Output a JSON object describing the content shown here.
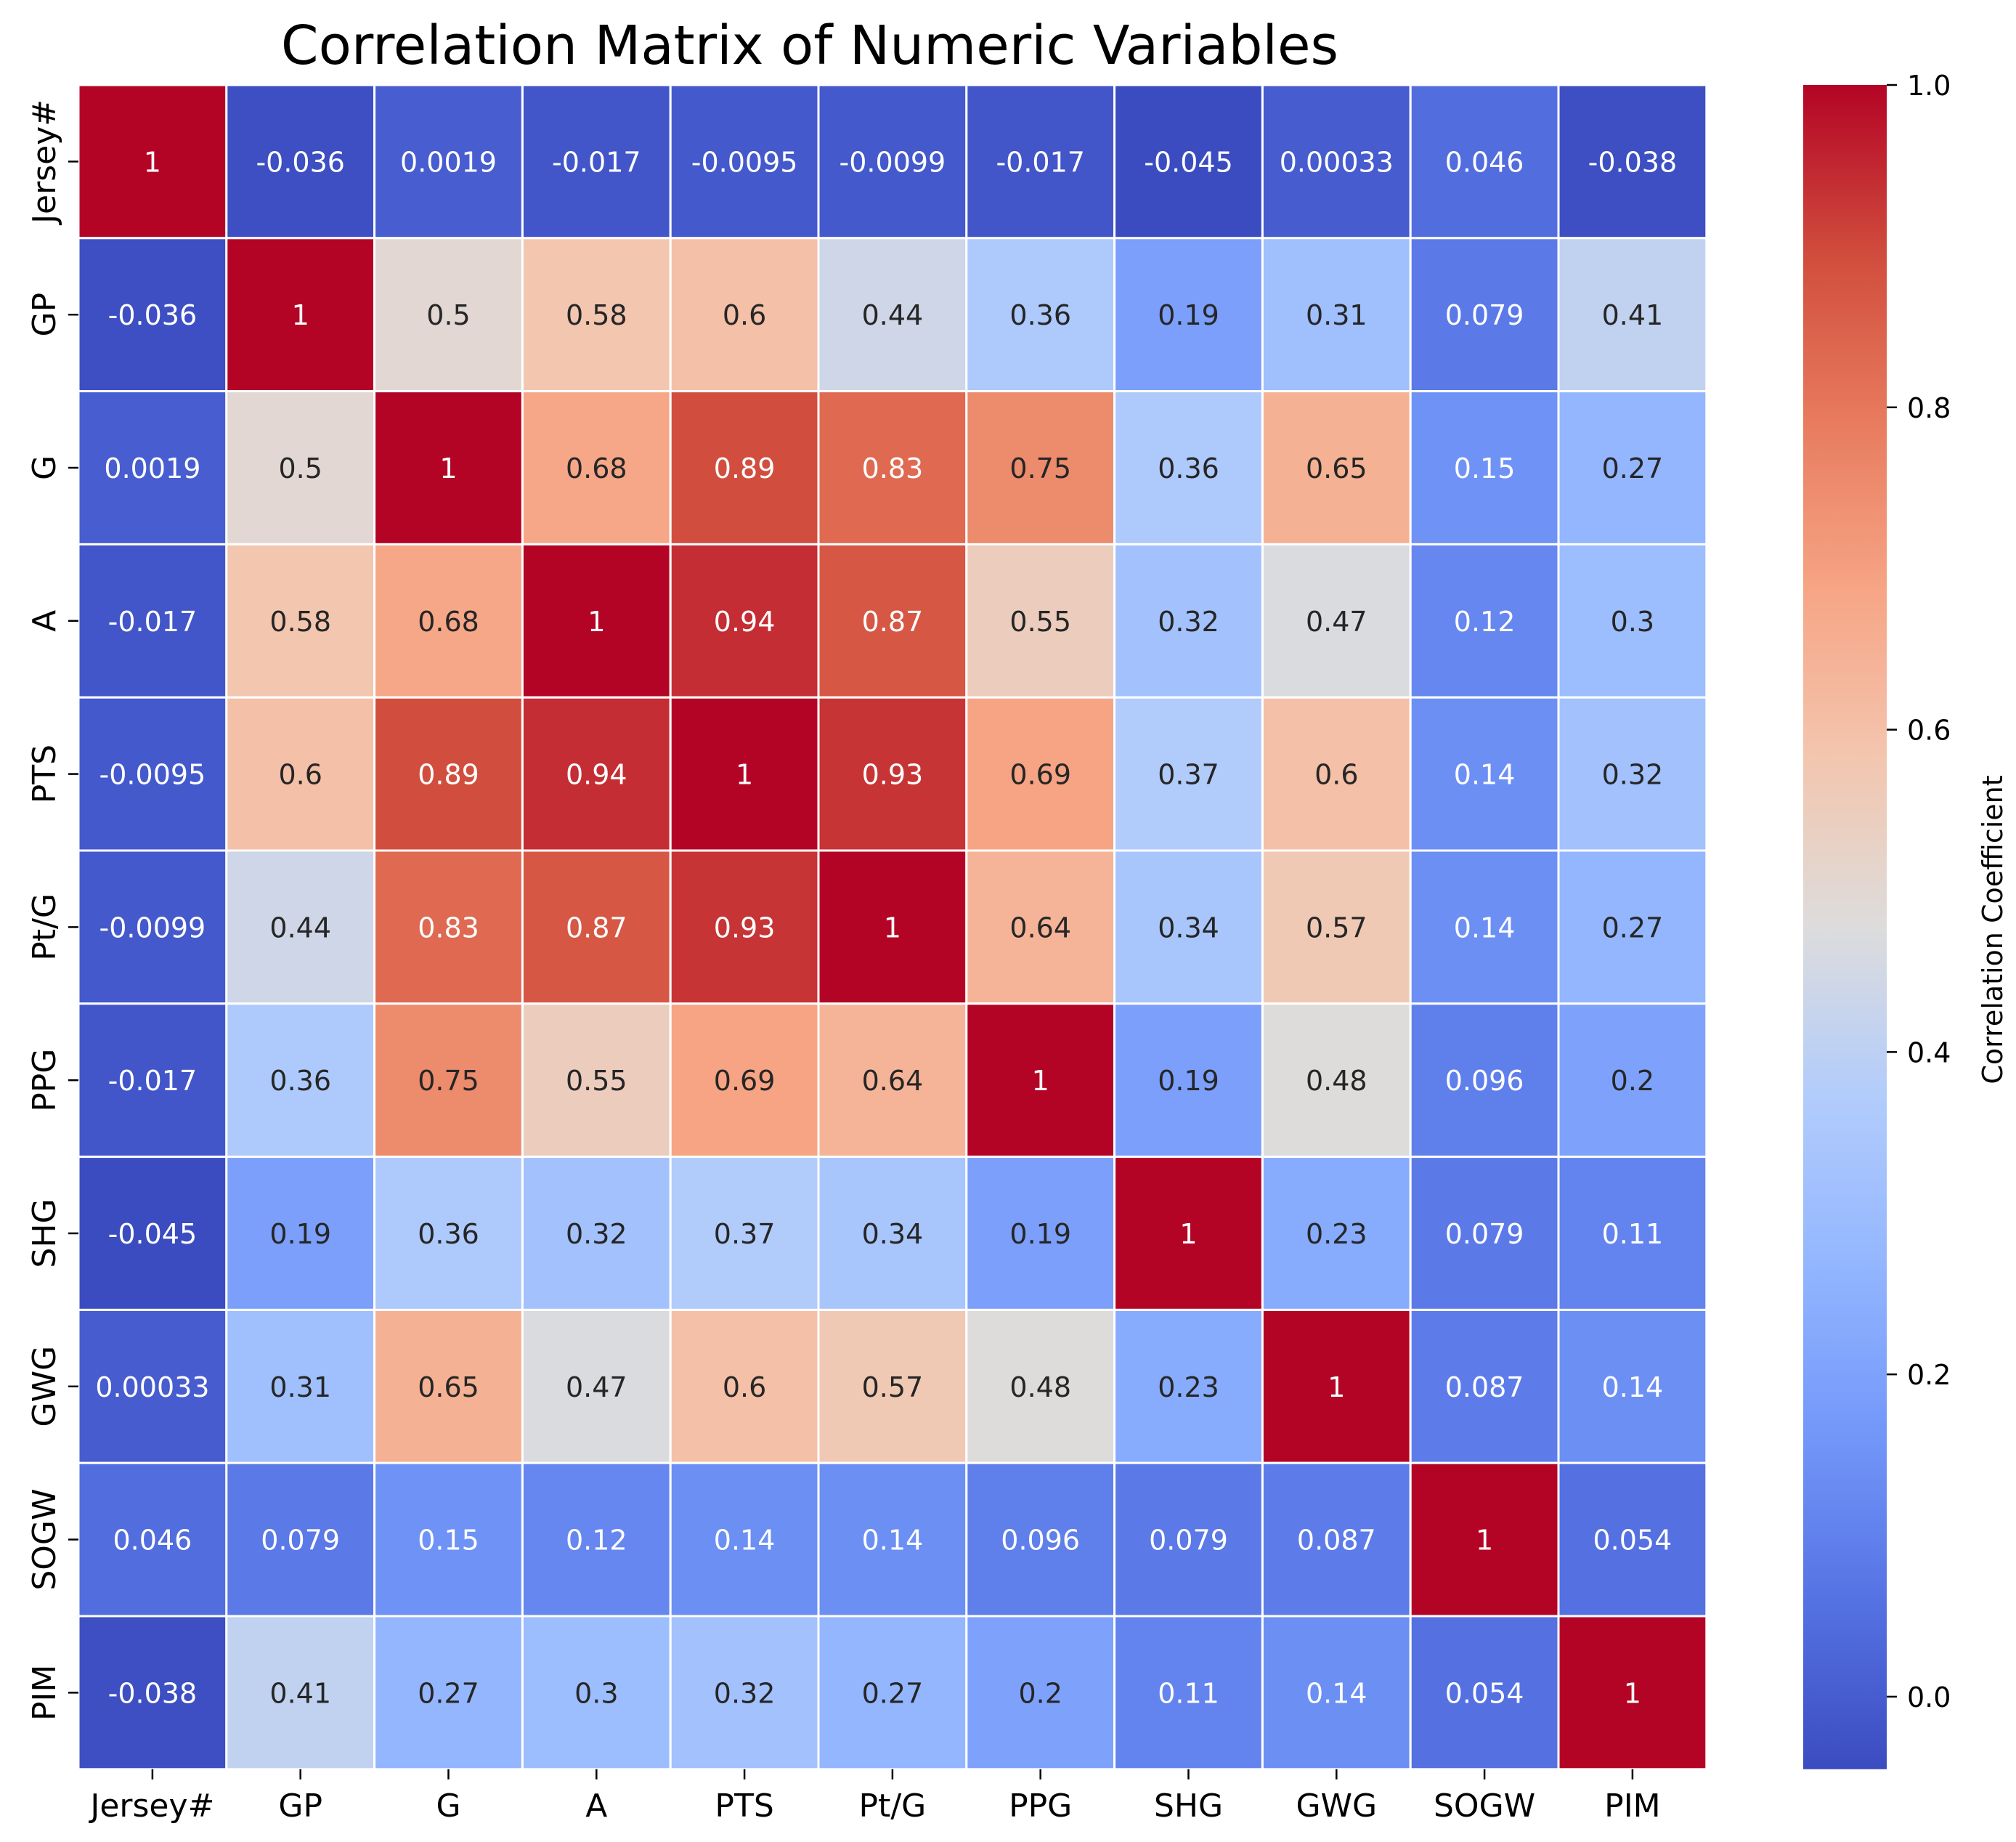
{
  "chart_data": {
    "type": "heatmap",
    "title": "Correlation Matrix of Numeric Variables",
    "xlabel": "",
    "ylabel": "",
    "labels": [
      "Jersey#",
      "GP",
      "G",
      "A",
      "PTS",
      "Pt/G",
      "PPG",
      "SHG",
      "GWG",
      "SOGW",
      "PIM"
    ],
    "annotations": [
      [
        "1",
        "-0.036",
        "0.0019",
        "-0.017",
        "-0.0095",
        "-0.0099",
        "-0.017",
        "-0.045",
        "0.00033",
        "0.046",
        "-0.038"
      ],
      [
        "-0.036",
        "1",
        "0.5",
        "0.58",
        "0.6",
        "0.44",
        "0.36",
        "0.19",
        "0.31",
        "0.079",
        "0.41"
      ],
      [
        "0.0019",
        "0.5",
        "1",
        "0.68",
        "0.89",
        "0.83",
        "0.75",
        "0.36",
        "0.65",
        "0.15",
        "0.27"
      ],
      [
        "-0.017",
        "0.58",
        "0.68",
        "1",
        "0.94",
        "0.87",
        "0.55",
        "0.32",
        "0.47",
        "0.12",
        "0.3"
      ],
      [
        "-0.0095",
        "0.6",
        "0.89",
        "0.94",
        "1",
        "0.93",
        "0.69",
        "0.37",
        "0.6",
        "0.14",
        "0.32"
      ],
      [
        "-0.0099",
        "0.44",
        "0.83",
        "0.87",
        "0.93",
        "1",
        "0.64",
        "0.34",
        "0.57",
        "0.14",
        "0.27"
      ],
      [
        "-0.017",
        "0.36",
        "0.75",
        "0.55",
        "0.69",
        "0.64",
        "1",
        "0.19",
        "0.48",
        "0.096",
        "0.2"
      ],
      [
        "-0.045",
        "0.19",
        "0.36",
        "0.32",
        "0.37",
        "0.34",
        "0.19",
        "1",
        "0.23",
        "0.079",
        "0.11"
      ],
      [
        "0.00033",
        "0.31",
        "0.65",
        "0.47",
        "0.6",
        "0.57",
        "0.48",
        "0.23",
        "1",
        "0.087",
        "0.14"
      ],
      [
        "0.046",
        "0.079",
        "0.15",
        "0.12",
        "0.14",
        "0.14",
        "0.096",
        "0.079",
        "0.087",
        "1",
        "0.054"
      ],
      [
        "-0.038",
        "0.41",
        "0.27",
        "0.3",
        "0.32",
        "0.27",
        "0.2",
        "0.11",
        "0.14",
        "0.054",
        "1"
      ]
    ],
    "colorbar": {
      "label": "Correlation Coefficient",
      "vmin": -0.045,
      "vmax": 1.0,
      "ticks": [
        "0.0",
        "0.2",
        "0.4",
        "0.6",
        "0.8",
        "1.0"
      ],
      "colormap": "coolwarm",
      "low_color": "#3b4cc0",
      "mid_color": "#dddcdc",
      "high_color": "#b40426"
    },
    "grid": false,
    "legend": "colorbar-right",
    "cell_border_color": "#ffffff"
  }
}
